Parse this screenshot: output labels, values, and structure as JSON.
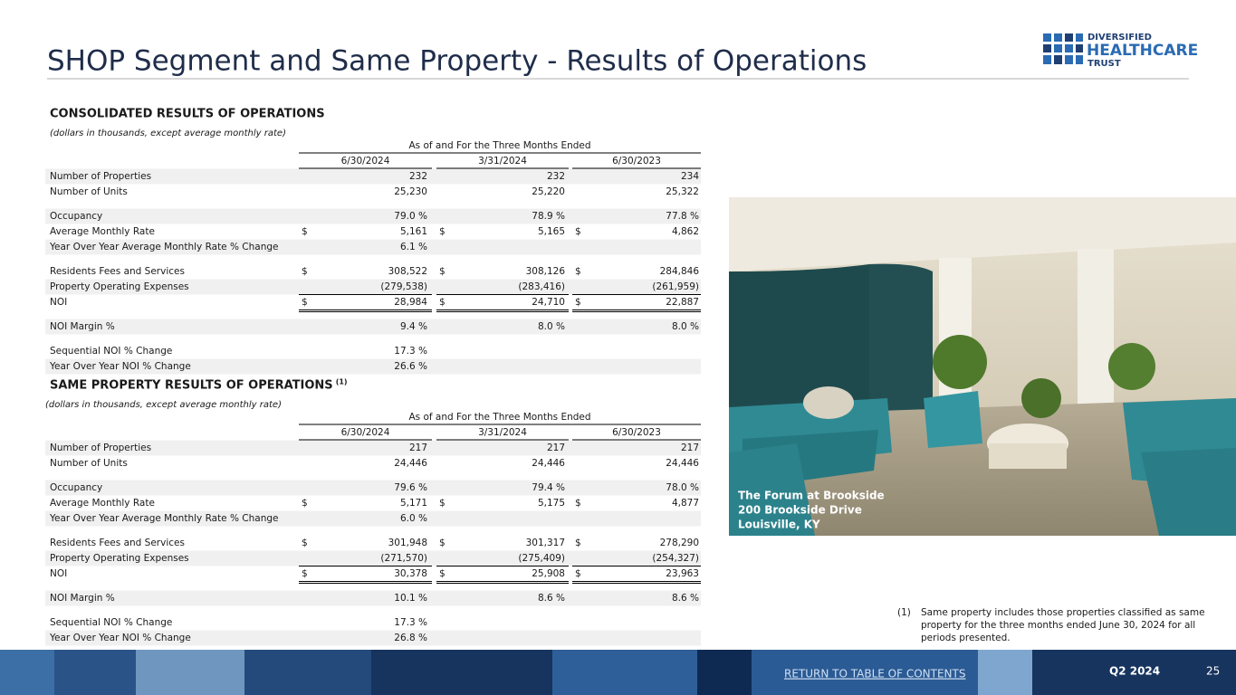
{
  "header": {
    "title": "SHOP Segment and Same Property - Results of Operations",
    "logo": [
      "DIVERSIFIED",
      "HEALTHCARE",
      "TRUST"
    ]
  },
  "sections": [
    {
      "title": "CONSOLIDATED RESULTS OF OPERATIONS",
      "note": "(dollars in thousands, except average monthly rate)",
      "period_header": "As of and For the Three Months Ended",
      "columns": [
        "6/30/2024",
        "3/31/2024",
        "6/30/2023"
      ],
      "groups": [
        [
          {
            "label": "Number of Properties",
            "values": [
              "232",
              "232",
              "234"
            ]
          },
          {
            "label": "Number of Units",
            "values": [
              "25,230",
              "25,220",
              "25,322"
            ]
          }
        ],
        [
          {
            "label": "Occupancy",
            "values": [
              "79.0 %",
              "78.9 %",
              "77.8 %"
            ]
          },
          {
            "label": "Average Monthly Rate",
            "currency": "$",
            "values": [
              "5,161",
              "5,165",
              "4,862"
            ]
          },
          {
            "label": "Year Over Year Average Monthly Rate % Change",
            "values": [
              "6.1 %"
            ]
          }
        ],
        [
          {
            "label": "Residents Fees and Services",
            "currency": "$",
            "values": [
              "308,522",
              "308,126",
              "284,846"
            ]
          },
          {
            "label": "Property Operating Expenses",
            "values": [
              "(279,538)",
              "(283,416)",
              "(261,959)"
            ]
          },
          {
            "label": "NOI",
            "currency": "$",
            "values": [
              "28,984",
              "24,710",
              "22,887"
            ]
          }
        ],
        [
          {
            "label": "NOI Margin %",
            "values": [
              "9.4 %",
              "8.0 %",
              "8.0 %"
            ]
          }
        ],
        [
          {
            "label": "Sequential NOI % Change",
            "values": [
              "17.3 %"
            ]
          },
          {
            "label": "Year Over Year NOI % Change",
            "values": [
              "26.6 %"
            ]
          }
        ]
      ]
    },
    {
      "title": "SAME PROPERTY RESULTS OF OPERATIONS",
      "footnote_ref": "(1)",
      "note": "(dollars in thousands, except average monthly rate)",
      "period_header": "As of and For the Three Months Ended",
      "columns": [
        "6/30/2024",
        "3/31/2024",
        "6/30/2023"
      ],
      "groups": [
        [
          {
            "label": "Number of Properties",
            "values": [
              "217",
              "217",
              "217"
            ]
          },
          {
            "label": "Number of Units",
            "values": [
              "24,446",
              "24,446",
              "24,446"
            ]
          }
        ],
        [
          {
            "label": "Occupancy",
            "values": [
              "79.6 %",
              "79.4 %",
              "78.0 %"
            ]
          },
          {
            "label": "Average Monthly Rate",
            "currency": "$",
            "values": [
              "5,171",
              "5,175",
              "4,877"
            ]
          },
          {
            "label": "Year Over Year Average Monthly Rate % Change",
            "values": [
              "6.0 %"
            ]
          }
        ],
        [
          {
            "label": "Residents Fees and Services",
            "currency": "$",
            "values": [
              "301,948",
              "301,317",
              "278,290"
            ]
          },
          {
            "label": "Property Operating Expenses",
            "values": [
              "(271,570)",
              "(275,409)",
              "(254,327)"
            ]
          },
          {
            "label": "NOI",
            "currency": "$",
            "values": [
              "30,378",
              "25,908",
              "23,963"
            ]
          }
        ],
        [
          {
            "label": "NOI Margin %",
            "values": [
              "10.1 %",
              "8.6 %",
              "8.6 %"
            ]
          }
        ],
        [
          {
            "label": "Sequential NOI % Change",
            "values": [
              "17.3 %"
            ]
          },
          {
            "label": "Year Over Year NOI % Change",
            "values": [
              "26.8 %"
            ]
          }
        ]
      ]
    }
  ],
  "photo_caption": [
    "The Forum at Brookside",
    "200 Brookside Drive",
    "Louisville, KY"
  ],
  "footnote": {
    "marker": "(1)",
    "lines": [
      "Same property includes those properties classified as same",
      "property for the three months ended June 30, 2024 for all",
      "periods presented."
    ]
  },
  "footer": {
    "link": "RETURN TO TABLE OF CONTENTS",
    "period": "Q2 2024",
    "page": "25"
  }
}
